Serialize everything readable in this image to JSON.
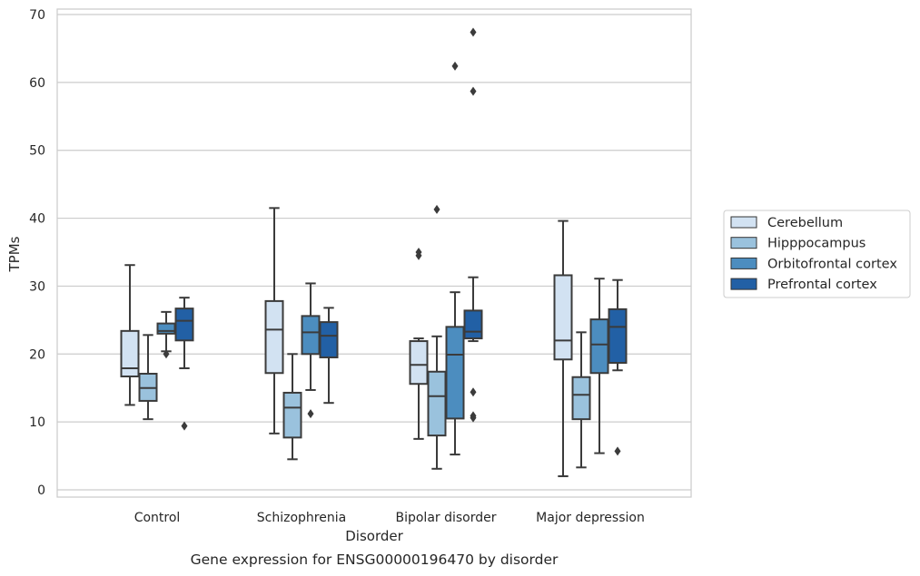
{
  "chart_data": {
    "type": "box",
    "caption": "Gene expression for ENSG00000196470 by disorder",
    "xlabel": "Disorder",
    "ylabel": "TPMs",
    "ylim": [
      -1,
      71
    ],
    "yticks": [
      0,
      10,
      20,
      30,
      40,
      50,
      60,
      70
    ],
    "grid": "horizontal",
    "legend_position": "right-center",
    "categories": [
      "Control",
      "Schizophrenia",
      "Bipolar disorder",
      "Major depression"
    ],
    "series": [
      {
        "name": "Cerebellum",
        "color": "#d2e2f2",
        "boxes": [
          {
            "whislo": 12.5,
            "q1": 16.7,
            "med": 17.9,
            "q3": 23.4,
            "whishi": 33.1,
            "fliers": []
          },
          {
            "whislo": 8.3,
            "q1": 17.2,
            "med": 23.6,
            "q3": 27.8,
            "whishi": 41.5,
            "fliers": []
          },
          {
            "whislo": 7.5,
            "q1": 15.6,
            "med": 18.4,
            "q3": 21.9,
            "whishi": 22.3,
            "fliers": [
              34.5,
              35.0
            ]
          },
          {
            "whislo": 2.0,
            "q1": 19.2,
            "med": 22.0,
            "q3": 31.6,
            "whishi": 39.6,
            "fliers": []
          }
        ]
      },
      {
        "name": "Hipppocampus",
        "color": "#9ac2dd",
        "boxes": [
          {
            "whislo": 10.4,
            "q1": 13.1,
            "med": 15.0,
            "q3": 17.1,
            "whishi": 22.8,
            "fliers": []
          },
          {
            "whislo": 4.5,
            "q1": 7.7,
            "med": 12.1,
            "q3": 14.3,
            "whishi": 20.0,
            "fliers": []
          },
          {
            "whislo": 3.1,
            "q1": 8.0,
            "med": 13.8,
            "q3": 17.4,
            "whishi": 22.6,
            "fliers": [
              41.3
            ]
          },
          {
            "whislo": 3.3,
            "q1": 10.4,
            "med": 14.0,
            "q3": 16.6,
            "whishi": 23.2,
            "fliers": []
          }
        ]
      },
      {
        "name": "Orbitofrontal cortex",
        "color": "#4c8dbf",
        "boxes": [
          {
            "whislo": 20.4,
            "q1": 23.0,
            "med": 23.4,
            "q3": 24.5,
            "whishi": 26.2,
            "fliers": [
              20.0
            ]
          },
          {
            "whislo": 14.7,
            "q1": 20.0,
            "med": 23.2,
            "q3": 25.6,
            "whishi": 30.4,
            "fliers": [
              11.2
            ]
          },
          {
            "whislo": 5.2,
            "q1": 10.5,
            "med": 19.9,
            "q3": 24.0,
            "whishi": 29.1,
            "fliers": [
              62.4
            ]
          },
          {
            "whislo": 5.4,
            "q1": 17.2,
            "med": 21.4,
            "q3": 25.1,
            "whishi": 31.1,
            "fliers": []
          }
        ]
      },
      {
        "name": "Prefrontal cortex",
        "color": "#2260a5",
        "boxes": [
          {
            "whislo": 17.9,
            "q1": 22.0,
            "med": 24.9,
            "q3": 26.7,
            "whishi": 28.3,
            "fliers": [
              9.4
            ]
          },
          {
            "whislo": 12.8,
            "q1": 19.5,
            "med": 22.7,
            "q3": 24.7,
            "whishi": 26.8,
            "fliers": []
          },
          {
            "whislo": 21.9,
            "q1": 22.3,
            "med": 23.3,
            "q3": 26.4,
            "whishi": 31.3,
            "fliers": [
              67.4,
              58.7,
              14.4,
              10.9,
              10.6
            ]
          },
          {
            "whislo": 17.6,
            "q1": 18.7,
            "med": 24.0,
            "q3": 26.6,
            "whishi": 30.9,
            "fliers": [
              5.7
            ]
          }
        ]
      }
    ]
  }
}
